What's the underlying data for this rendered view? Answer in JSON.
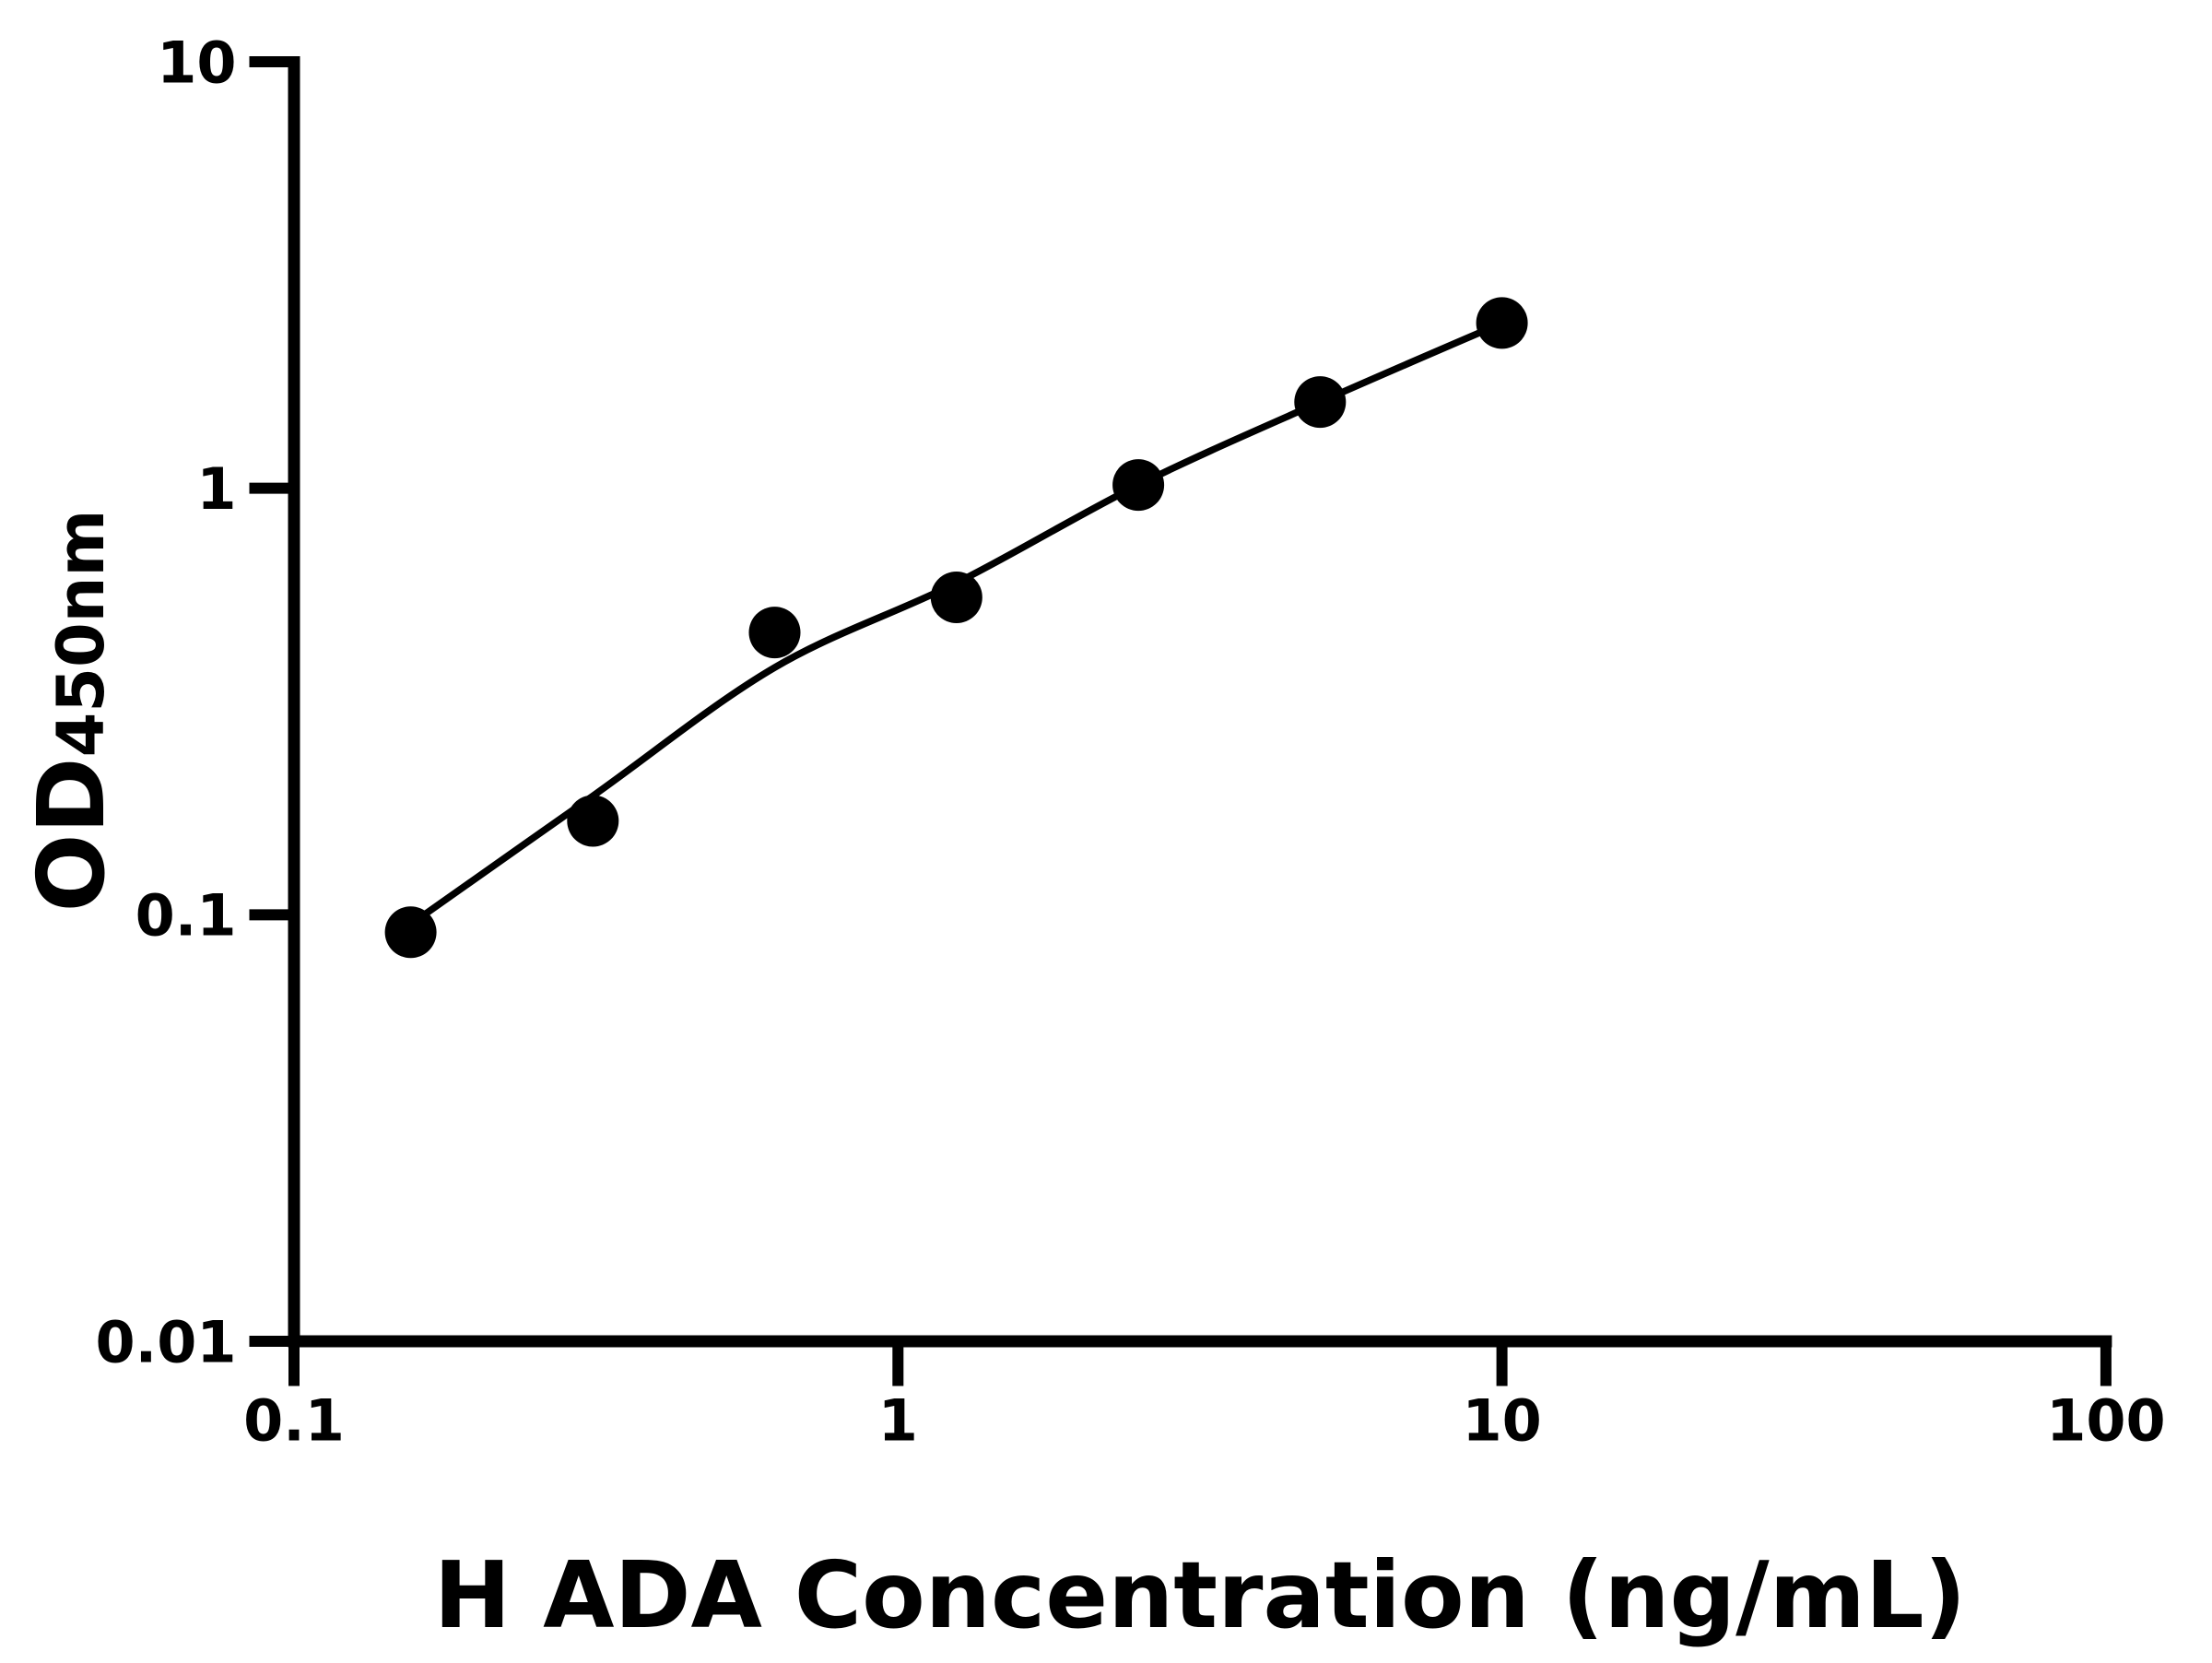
{
  "figure": {
    "background_color": "#ffffff",
    "ink_color": "#000000"
  },
  "chart_data": {
    "type": "scatter",
    "title": "",
    "xlabel": "H ADA Concentration (ng/mL)",
    "ylabel_main": "OD",
    "ylabel_sub": "450nm",
    "x_scale": "log",
    "y_scale": "log",
    "xlim": [
      0.1,
      100
    ],
    "ylim": [
      0.01,
      10
    ],
    "x_ticks": [
      0.1,
      1,
      10,
      100
    ],
    "x_tick_labels": [
      "0.1",
      "1",
      "10",
      "100"
    ],
    "y_ticks": [
      10,
      1,
      0.1,
      0.01
    ],
    "y_tick_labels": [
      "10",
      "1",
      "0.1",
      "0.01"
    ],
    "grid": false,
    "legend": "none",
    "marker": "filled-circle",
    "marker_color": "#000000",
    "line_color": "#000000",
    "series": [
      {
        "name": "standard-points",
        "x": [
          0.156,
          0.3125,
          0.625,
          1.25,
          2.5,
          5,
          10
        ],
        "y": [
          0.091,
          0.166,
          0.459,
          0.555,
          1.018,
          1.593,
          2.44
        ]
      }
    ],
    "fit_curve": {
      "name": "fitted-standard-curve",
      "x": [
        0.156,
        0.3125,
        0.625,
        1.25,
        2.5,
        5,
        10
      ],
      "y": [
        0.095,
        0.19,
        0.38,
        0.6,
        1.018,
        1.593,
        2.44
      ]
    }
  }
}
